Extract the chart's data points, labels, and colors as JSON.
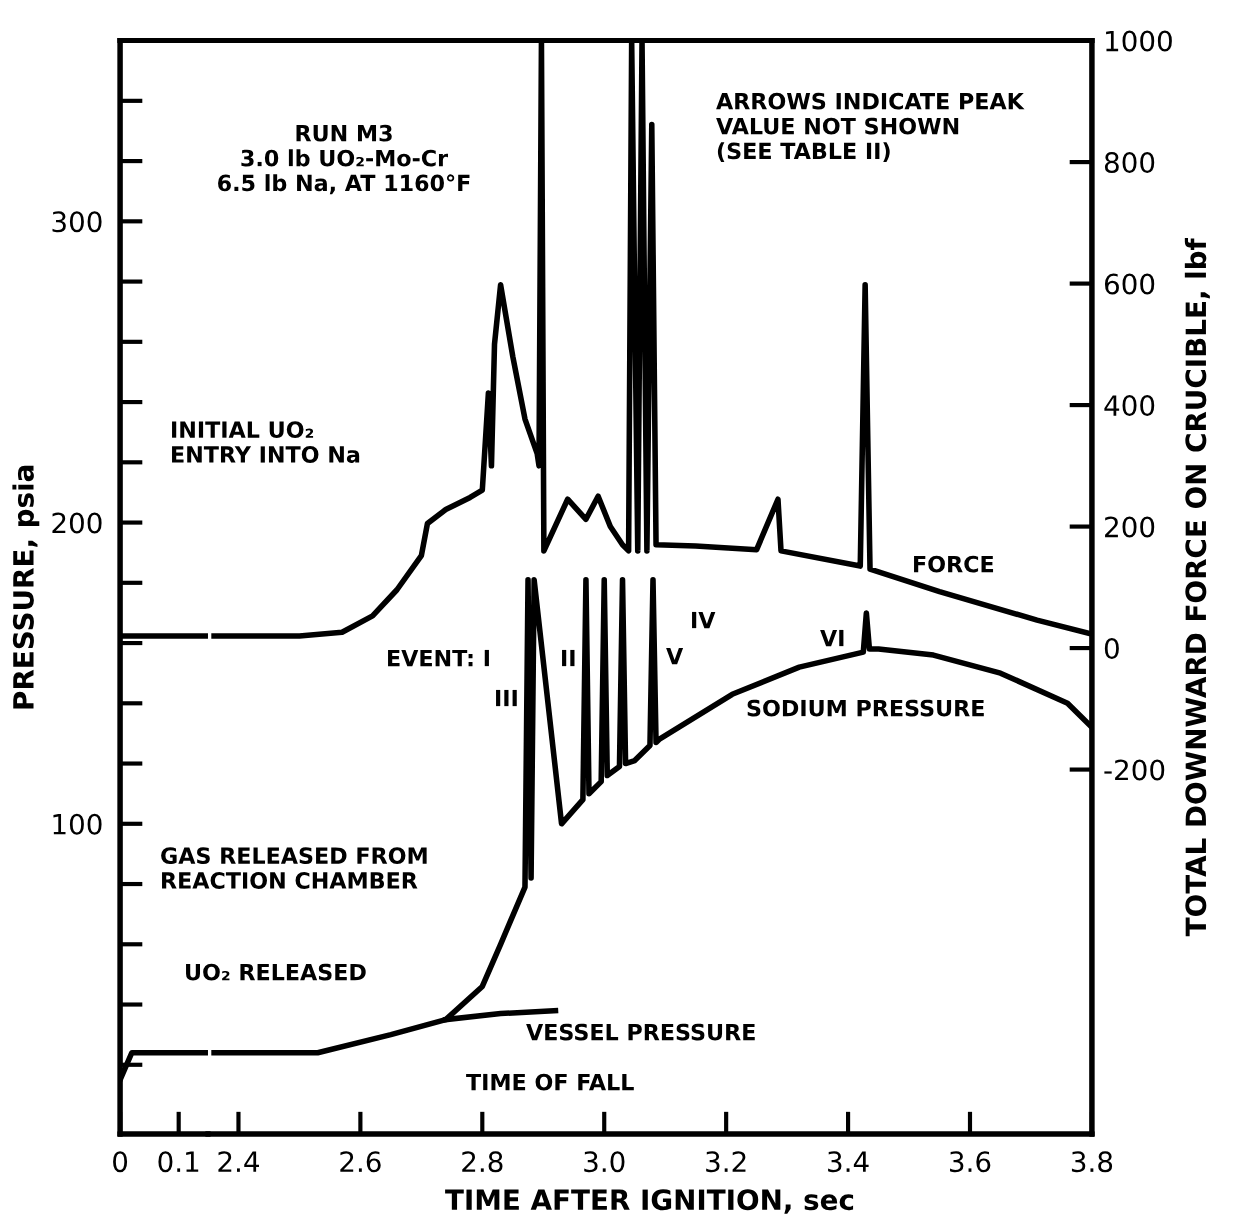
{
  "chart_data": [
    {
      "type": "line",
      "ylabel": "PRESSURE, psia",
      "xlim": [
        0,
        0.15
      ],
      "xticks": [
        0,
        0.1
      ],
      "ylim": [
        -3,
        360
      ],
      "y2lim": [
        -800,
        1000
      ],
      "yticks": [
        {
          "value": 20,
          "label": null
        },
        {
          "value": 40,
          "label": null
        },
        {
          "value": 60,
          "label": null
        },
        {
          "value": 80,
          "label": null
        },
        100,
        {
          "value": 120,
          "label": null
        },
        {
          "value": 140,
          "label": null
        },
        {
          "value": 160,
          "label": null
        },
        {
          "value": 180,
          "label": null
        },
        200,
        {
          "value": 220,
          "label": null
        },
        {
          "value": 240,
          "label": null
        },
        {
          "value": 260,
          "label": null
        },
        {
          "value": 280,
          "label": null
        },
        300,
        {
          "value": 320,
          "label": null
        },
        {
          "value": 340,
          "label": null
        }
      ],
      "series": [
        {
          "color": "#000000",
          "axis": "y2",
          "x": [
            0,
            0.15
          ],
          "values": [
            20,
            20
          ]
        },
        {
          "color": "#000000",
          "x": [
            0,
            0.02,
            0.15
          ],
          "values": [
            15,
            24,
            24
          ]
        }
      ],
      "annotations": [
        "INITIAL UO₂\nENTRY INTO Na",
        "GAS RELEASED FROM\nREACTION CHAMBER",
        "UO₂ RELEASED"
      ]
    },
    {
      "type": "line",
      "xlabel": "TIME AFTER IGNITION, sec",
      "y2label": "TOTAL DOWNWARD FORCE ON CRUCIBLE, lbf",
      "xlim": [
        2.35,
        3.8
      ],
      "xticks": [
        2.4,
        2.6,
        2.8,
        {
          "value": 3.0,
          "label": "3.0"
        },
        3.2,
        3.4,
        3.6,
        3.8
      ],
      "ylim": [
        -3,
        360
      ],
      "y2lim": [
        -800,
        1000
      ],
      "y2ticks": [
        -200,
        0,
        200,
        400,
        600,
        800,
        1000
      ],
      "series": [
        {
          "color": "#000000",
          "axis": "y2",
          "x": [
            2.36,
            2.5,
            2.57,
            2.62,
            2.66,
            2.7,
            2.71,
            2.74,
            2.78,
            2.8,
            2.81,
            2.815,
            2.82,
            2.83,
            2.85,
            2.87,
            2.89,
            2.893,
            2.897,
            2.901,
            2.94,
            2.97,
            2.99,
            3.01,
            3.03,
            3.04,
            3.045,
            3.055,
            3.062,
            3.07,
            3.078,
            3.085,
            3.15,
            3.25,
            3.285,
            3.29,
            3.42,
            3.428,
            3.436,
            3.55,
            3.71,
            3.8
          ],
          "values": [
            20,
            20,
            26,
            53,
            96,
            152,
            205,
            228,
            248,
            260,
            420,
            300,
            500,
            598,
            480,
            377,
            320,
            300,
            1000,
            160,
            245,
            212,
            250,
            200,
            170,
            160,
            1000,
            160,
            1000,
            160,
            862,
            170,
            168,
            162,
            245,
            160,
            135,
            598,
            130,
            93,
            46,
            23
          ]
        },
        {
          "color": "#000000",
          "x": [
            2.36,
            2.53,
            2.65,
            2.74,
            2.8,
            2.83,
            2.87,
            2.875,
            2.88,
            2.885,
            2.93,
            2.965,
            2.97,
            2.975,
            2.995,
            3.0,
            3.005,
            3.025,
            3.03,
            3.035,
            3.05,
            3.075,
            3.08,
            3.085,
            3.09,
            3.21,
            3.32,
            3.425,
            3.43,
            3.435,
            3.45,
            3.54,
            3.65,
            3.76,
            3.8
          ],
          "values": [
            24,
            24,
            30,
            35,
            46,
            60,
            79,
            181,
            82,
            181,
            100,
            108,
            181,
            110,
            114,
            181,
            116,
            119,
            181,
            120,
            121,
            126,
            181,
            127,
            128,
            143,
            152,
            157,
            170,
            158,
            158,
            156,
            150,
            140,
            132
          ]
        },
        {
          "color": "#000000",
          "x": [
            2.74,
            2.83,
            2.92
          ],
          "values": [
            35,
            37,
            38
          ]
        }
      ],
      "annotations": [
        "RUN M3\n3.0 lb UO₂-Mo-Cr\n6.5 lb Na, AT 1160°F",
        "ARROWS INDICATE PEAK\nVALUE NOT SHOWN\n(SEE TABLE II)",
        "FORCE",
        "SODIUM PRESSURE",
        "VESSEL PRESSURE",
        "TIME OF FALL",
        "EVENT: I",
        "II",
        "III",
        "IV",
        "V",
        "VI"
      ]
    }
  ]
}
